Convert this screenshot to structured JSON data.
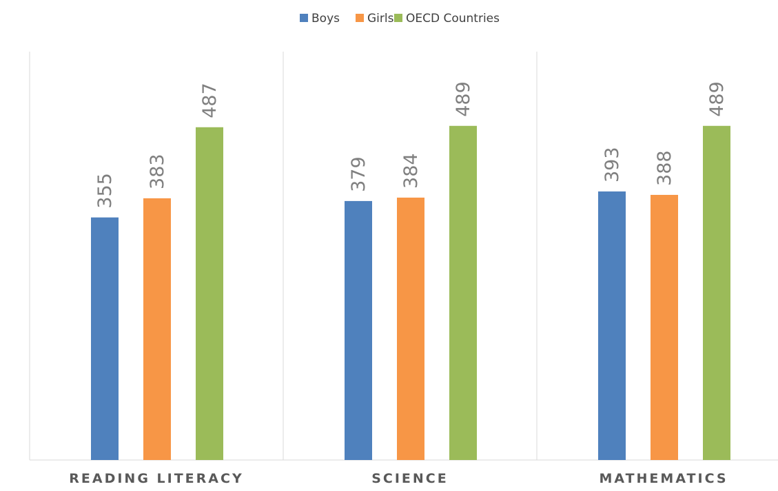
{
  "chart_data": {
    "type": "bar",
    "categories": [
      "READING LITERACY",
      "SCIENCE",
      "MATHEMATICS"
    ],
    "series": [
      {
        "name": "Boys",
        "color": "#4f81bd",
        "values": [
          355,
          379,
          393
        ]
      },
      {
        "name": "Girls",
        "color": "#f79646",
        "values": [
          383,
          384,
          388
        ]
      },
      {
        "name": "OECD Countries",
        "color": "#9bbb59",
        "values": [
          487,
          489,
          489
        ]
      }
    ],
    "ylim": [
      0,
      600
    ],
    "grid": false,
    "legend": "top-center",
    "data_labels": "rotated-vertical"
  }
}
